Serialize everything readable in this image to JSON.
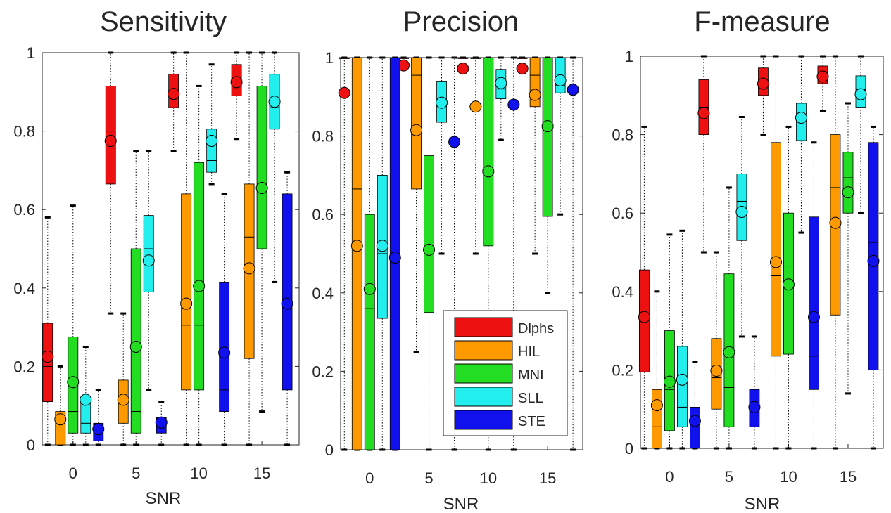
{
  "legend": {
    "position": "lower-right of second panel",
    "entries": [
      {
        "name": "Dlphs",
        "color": "#ee1111"
      },
      {
        "name": "HIL",
        "color": "#ff9900"
      },
      {
        "name": "MNI",
        "color": "#22dd22"
      },
      {
        "name": "SLL",
        "color": "#22eeee"
      },
      {
        "name": "STE",
        "color": "#1111ee"
      }
    ]
  },
  "chart_data": [
    {
      "type": "box",
      "title": "Sensitivity",
      "xlabel": "SNR",
      "ylabel": "",
      "categories": [
        "0",
        "5",
        "10",
        "15"
      ],
      "ylim": [
        0,
        1
      ],
      "yticks": [
        "0",
        "0.2",
        "0.4",
        "0.6",
        "0.8",
        "1"
      ],
      "series": [
        {
          "name": "Dlphs",
          "color": "#ee1111",
          "boxes": [
            {
              "q1": 0.11,
              "median": 0.2,
              "q3": 0.31,
              "wlo": 0,
              "whi": 0.58,
              "mean": 0.225
            },
            {
              "q1": 0.665,
              "median": 0.8,
              "q3": 0.915,
              "wlo": 0.335,
              "whi": 1.0,
              "mean": 0.775
            },
            {
              "q1": 0.86,
              "median": 0.9,
              "q3": 0.945,
              "wlo": 0.75,
              "whi": 1.0,
              "mean": 0.895
            },
            {
              "q1": 0.89,
              "median": 0.93,
              "q3": 0.97,
              "wlo": 0.78,
              "whi": 1.0,
              "mean": 0.925
            }
          ]
        },
        {
          "name": "HIL",
          "color": "#ff9900",
          "boxes": [
            {
              "q1": 0,
              "median": 0.06,
              "q3": 0.085,
              "wlo": 0,
              "whi": 0.2,
              "mean": 0.065
            },
            {
              "q1": 0.055,
              "median": 0.11,
              "q3": 0.165,
              "wlo": 0,
              "whi": 0.335,
              "mean": 0.115
            },
            {
              "q1": 0.14,
              "median": 0.305,
              "q3": 0.64,
              "wlo": 0,
              "whi": 1.0,
              "mean": 0.36
            },
            {
              "q1": 0.22,
              "median": 0.53,
              "q3": 0.665,
              "wlo": 0,
              "whi": 1.0,
              "mean": 0.45
            }
          ]
        },
        {
          "name": "MNI",
          "color": "#22dd22",
          "boxes": [
            {
              "q1": 0.03,
              "median": 0.085,
              "q3": 0.275,
              "wlo": 0,
              "whi": 0.61,
              "mean": 0.16
            },
            {
              "q1": 0.03,
              "median": 0.085,
              "q3": 0.5,
              "wlo": 0,
              "whi": 0.75,
              "mean": 0.25
            },
            {
              "q1": 0.14,
              "median": 0.305,
              "q3": 0.72,
              "wlo": 0,
              "whi": 0.915,
              "mean": 0.405
            },
            {
              "q1": 0.5,
              "median": 0.665,
              "q3": 0.915,
              "wlo": 0.085,
              "whi": 1.0,
              "mean": 0.655
            }
          ]
        },
        {
          "name": "SLL",
          "color": "#22eeee",
          "boxes": [
            {
              "q1": 0.03,
              "median": 0.055,
              "q3": 0.11,
              "wlo": 0,
              "whi": 0.25,
              "mean": 0.115
            },
            {
              "q1": 0.39,
              "median": 0.5,
              "q3": 0.585,
              "wlo": 0.14,
              "whi": 0.75,
              "mean": 0.47
            },
            {
              "q1": 0.695,
              "median": 0.725,
              "q3": 0.805,
              "wlo": 0.665,
              "whi": 0.97,
              "mean": 0.775
            },
            {
              "q1": 0.805,
              "median": 0.86,
              "q3": 0.945,
              "wlo": 0.415,
              "whi": 1.0,
              "mean": 0.875
            }
          ]
        },
        {
          "name": "STE",
          "color": "#1111ee",
          "boxes": [
            {
              "q1": 0.01,
              "median": 0.03,
              "q3": 0.055,
              "wlo": 0,
              "whi": 0.14,
              "mean": 0.04
            },
            {
              "q1": 0.03,
              "median": 0.05,
              "q3": 0.07,
              "wlo": 0,
              "whi": 0.11,
              "mean": 0.057
            },
            {
              "q1": 0.085,
              "median": 0.14,
              "q3": 0.415,
              "wlo": 0,
              "whi": 0.64,
              "mean": 0.235
            },
            {
              "q1": 0.14,
              "median": 0.36,
              "q3": 0.64,
              "wlo": 0,
              "whi": 0.695,
              "mean": 0.36
            }
          ]
        }
      ]
    },
    {
      "type": "box",
      "title": "Precision",
      "xlabel": "SNR",
      "ylabel": "",
      "categories": [
        "0",
        "5",
        "10",
        "15"
      ],
      "ylim": [
        0,
        1
      ],
      "yticks": [
        "0",
        "0.2",
        "0.4",
        "0.6",
        "0.8",
        "1"
      ],
      "series": [
        {
          "name": "Dlphs",
          "color": "#ee1111",
          "boxes": [
            {
              "q1": 1.0,
              "median": 1.0,
              "q3": 1.0,
              "wlo": 0,
              "whi": 1.0,
              "mean": 0.91
            },
            {
              "q1": 1.0,
              "median": 1.0,
              "q3": 1.0,
              "wlo": 1.0,
              "whi": 1.0,
              "mean": 0.98
            },
            {
              "q1": 1.0,
              "median": 1.0,
              "q3": 1.0,
              "wlo": 1.0,
              "whi": 1.0,
              "mean": 0.972
            },
            {
              "q1": 1.0,
              "median": 1.0,
              "q3": 1.0,
              "wlo": 1.0,
              "whi": 1.0,
              "mean": 0.972
            }
          ]
        },
        {
          "name": "HIL",
          "color": "#ff9900",
          "boxes": [
            {
              "q1": 0,
              "median": 0.665,
              "q3": 1.0,
              "wlo": 0,
              "whi": 1.0,
              "mean": 0.52
            },
            {
              "q1": 0.665,
              "median": 0.955,
              "q3": 1.0,
              "wlo": 0.25,
              "whi": 1.0,
              "mean": 0.815
            },
            {
              "q1": 1.0,
              "median": 1.0,
              "q3": 1.0,
              "wlo": 0.5,
              "whi": 1.0,
              "mean": 0.875
            },
            {
              "q1": 0.875,
              "median": 0.955,
              "q3": 1.0,
              "wlo": 0.5,
              "whi": 1.0,
              "mean": 0.905
            }
          ]
        },
        {
          "name": "MNI",
          "color": "#22dd22",
          "boxes": [
            {
              "q1": 0,
              "median": 0.36,
              "q3": 0.6,
              "wlo": 0,
              "whi": 1.0,
              "mean": 0.41
            },
            {
              "q1": 0.35,
              "median": 0.5,
              "q3": 0.75,
              "wlo": 0,
              "whi": 1.0,
              "mean": 0.51
            },
            {
              "q1": 0.52,
              "median": 1.0,
              "q3": 1.0,
              "wlo": 0,
              "whi": 1.0,
              "mean": 0.71
            },
            {
              "q1": 0.595,
              "median": 1.0,
              "q3": 1.0,
              "wlo": 0.4,
              "whi": 1.0,
              "mean": 0.825
            }
          ]
        },
        {
          "name": "SLL",
          "color": "#22eeee",
          "boxes": [
            {
              "q1": 0.335,
              "median": 0.5,
              "q3": 0.7,
              "wlo": 0,
              "whi": 1.0,
              "mean": 0.52
            },
            {
              "q1": 0.835,
              "median": 0.88,
              "q3": 0.94,
              "wlo": 0.5,
              "whi": 1.0,
              "mean": 0.885
            },
            {
              "q1": 0.895,
              "median": 0.92,
              "q3": 0.97,
              "wlo": 0.79,
              "whi": 1.0,
              "mean": 0.935
            },
            {
              "q1": 0.91,
              "median": 0.93,
              "q3": 1.0,
              "wlo": 0.6,
              "whi": 1.0,
              "mean": 0.942
            }
          ]
        },
        {
          "name": "STE",
          "color": "#1111ee",
          "boxes": [
            {
              "q1": 0,
              "median": 1.0,
              "q3": 1.0,
              "wlo": 0,
              "whi": 1.0,
              "mean": 0.49
            },
            {
              "q1": 0.785,
              "median": 0.785,
              "q3": 0.785,
              "wlo": 0,
              "whi": 1.0,
              "mean": 0.785
            },
            {
              "q1": 0.88,
              "median": 0.88,
              "q3": 0.88,
              "wlo": 0,
              "whi": 1.0,
              "mean": 0.88
            },
            {
              "q1": 0.918,
              "median": 0.918,
              "q3": 0.918,
              "wlo": 0,
              "whi": 1.0,
              "mean": 0.918
            }
          ]
        }
      ]
    },
    {
      "type": "box",
      "title": "F-measure",
      "xlabel": "SNR",
      "ylabel": "",
      "categories": [
        "0",
        "5",
        "10",
        "15"
      ],
      "ylim": [
        0,
        1
      ],
      "yticks": [
        "0",
        "0.2",
        "0.4",
        "0.6",
        "0.8",
        "1"
      ],
      "series": [
        {
          "name": "Dlphs",
          "color": "#ee1111",
          "boxes": [
            {
              "q1": 0.195,
              "median": 0.33,
              "q3": 0.455,
              "wlo": 0,
              "whi": 0.82,
              "mean": 0.335
            },
            {
              "q1": 0.8,
              "median": 0.87,
              "q3": 0.94,
              "wlo": 0.5,
              "whi": 1.0,
              "mean": 0.855
            },
            {
              "q1": 0.9,
              "median": 0.93,
              "q3": 0.97,
              "wlo": 0.8,
              "whi": 1.0,
              "mean": 0.93
            },
            {
              "q1": 0.93,
              "median": 0.955,
              "q3": 0.975,
              "wlo": 0.86,
              "whi": 1.0,
              "mean": 0.948
            }
          ]
        },
        {
          "name": "HIL",
          "color": "#ff9900",
          "boxes": [
            {
              "q1": 0,
              "median": 0.055,
              "q3": 0.15,
              "wlo": 0,
              "whi": 0.4,
              "mean": 0.11
            },
            {
              "q1": 0.1,
              "median": 0.18,
              "q3": 0.28,
              "wlo": 0,
              "whi": 0.5,
              "mean": 0.198
            },
            {
              "q1": 0.235,
              "median": 0.44,
              "q3": 0.78,
              "wlo": 0,
              "whi": 1.0,
              "mean": 0.475
            },
            {
              "q1": 0.34,
              "median": 0.665,
              "q3": 0.8,
              "wlo": 0,
              "whi": 1.0,
              "mean": 0.575
            }
          ]
        },
        {
          "name": "MNI",
          "color": "#22dd22",
          "boxes": [
            {
              "q1": 0.045,
              "median": 0.15,
              "q3": 0.3,
              "wlo": 0,
              "whi": 0.545,
              "mean": 0.17
            },
            {
              "q1": 0.055,
              "median": 0.155,
              "q3": 0.445,
              "wlo": 0,
              "whi": 0.665,
              "mean": 0.245
            },
            {
              "q1": 0.24,
              "median": 0.465,
              "q3": 0.6,
              "wlo": 0,
              "whi": 0.82,
              "mean": 0.418
            },
            {
              "q1": 0.6,
              "median": 0.69,
              "q3": 0.755,
              "wlo": 0.14,
              "whi": 0.88,
              "mean": 0.653
            }
          ]
        },
        {
          "name": "SLL",
          "color": "#22eeee",
          "boxes": [
            {
              "q1": 0.055,
              "median": 0.105,
              "q3": 0.26,
              "wlo": 0,
              "whi": 0.555,
              "mean": 0.175
            },
            {
              "q1": 0.53,
              "median": 0.63,
              "q3": 0.7,
              "wlo": 0.285,
              "whi": 0.845,
              "mean": 0.603
            },
            {
              "q1": 0.785,
              "median": 0.845,
              "q3": 0.88,
              "wlo": 0.55,
              "whi": 1.0,
              "mean": 0.843
            },
            {
              "q1": 0.87,
              "median": 0.915,
              "q3": 0.95,
              "wlo": 0.6,
              "whi": 1.0,
              "mean": 0.903
            }
          ]
        },
        {
          "name": "STE",
          "color": "#1111ee",
          "boxes": [
            {
              "q1": 0,
              "median": 0.06,
              "q3": 0.105,
              "wlo": 0,
              "whi": 0.22,
              "mean": 0.07
            },
            {
              "q1": 0.055,
              "median": 0.1,
              "q3": 0.15,
              "wlo": 0,
              "whi": 0.285,
              "mean": 0.105
            },
            {
              "q1": 0.15,
              "median": 0.235,
              "q3": 0.59,
              "wlo": 0,
              "whi": 0.78,
              "mean": 0.335
            },
            {
              "q1": 0.2,
              "median": 0.525,
              "q3": 0.78,
              "wlo": 0,
              "whi": 0.82,
              "mean": 0.478
            }
          ]
        }
      ]
    }
  ]
}
